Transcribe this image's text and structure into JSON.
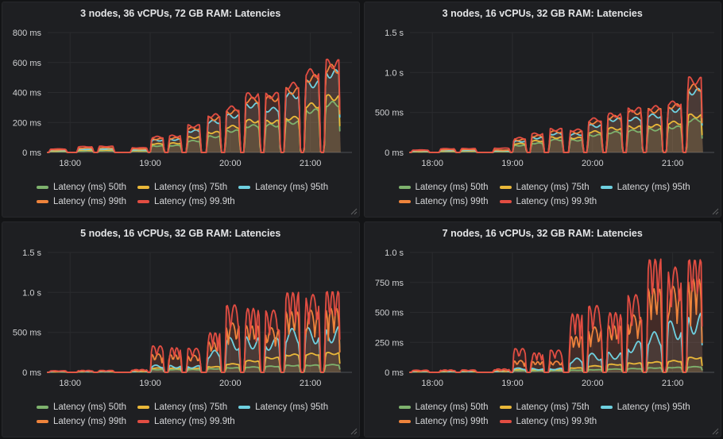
{
  "page": {
    "background": "#131416",
    "panel_background": "#1e1f22",
    "grid_color": "#2a2b2e",
    "axis_color": "#4f5256",
    "tick_text_color": "#d0d1d3",
    "title_color": "#e3e4e6"
  },
  "chart_data": [
    {
      "type": "area",
      "title": "3 nodes, 36 vCPUs, 72 GB RAM: Latencies",
      "style": "plateau",
      "x_range": [
        17.72,
        21.52
      ],
      "data_end": 21.38,
      "x_ticks": [
        {
          "hour": 18,
          "label": "18:00"
        },
        {
          "hour": 19,
          "label": "19:00"
        },
        {
          "hour": 20,
          "label": "20:00"
        },
        {
          "hour": 21,
          "label": "21:00"
        }
      ],
      "y_max": 800,
      "y_ticks": [
        {
          "value": 0,
          "label": "0 ms"
        },
        {
          "value": 200,
          "label": "200 ms"
        },
        {
          "value": 400,
          "label": "400 ms"
        },
        {
          "value": 600,
          "label": "600 ms"
        },
        {
          "value": 800,
          "label": "800 ms"
        }
      ],
      "y_unit": "latency",
      "burst_windows": [
        [
          17.73,
          17.97
        ],
        [
          18.08,
          18.3
        ],
        [
          18.34,
          18.56
        ],
        [
          18.75,
          18.98
        ],
        [
          19.0,
          19.18
        ],
        [
          19.22,
          19.4
        ],
        [
          19.45,
          19.64
        ],
        [
          19.7,
          19.89
        ],
        [
          19.93,
          20.13
        ],
        [
          20.17,
          20.38
        ],
        [
          20.42,
          20.63
        ],
        [
          20.67,
          20.88
        ],
        [
          20.92,
          21.13
        ],
        [
          21.17,
          21.38
        ]
      ],
      "series": [
        {
          "name": "Latency (ms) 50th",
          "color": "#7eb26d",
          "peaks": [
            6,
            10,
            11,
            8,
            45,
            48,
            80,
            110,
            150,
            185,
            190,
            210,
            290,
            340
          ]
        },
        {
          "name": "Latency (ms) 75th",
          "color": "#eab839",
          "peaks": [
            10,
            16,
            17,
            13,
            60,
            64,
            105,
            140,
            180,
            220,
            215,
            240,
            330,
            385
          ]
        },
        {
          "name": "Latency (ms) 95th",
          "color": "#6ed0e0",
          "peaks": [
            14,
            22,
            24,
            18,
            85,
            90,
            150,
            215,
            255,
            330,
            300,
            400,
            480,
            552
          ]
        },
        {
          "name": "Latency (ms) 99th",
          "color": "#ef843c",
          "peaks": [
            18,
            30,
            32,
            24,
            95,
            100,
            168,
            238,
            285,
            368,
            378,
            432,
            520,
            588
          ]
        },
        {
          "name": "Latency (ms) 99.9th",
          "color": "#e24d42",
          "peaks": [
            24,
            40,
            42,
            32,
            108,
            115,
            185,
            258,
            310,
            398,
            400,
            468,
            558,
            622
          ]
        }
      ]
    },
    {
      "type": "area",
      "title": "3 nodes, 16 vCPUs, 32 GB RAM: Latencies",
      "style": "plateau",
      "x_range": [
        17.72,
        21.52
      ],
      "data_end": 21.38,
      "x_ticks": [
        {
          "hour": 18,
          "label": "18:00"
        },
        {
          "hour": 19,
          "label": "19:00"
        },
        {
          "hour": 20,
          "label": "20:00"
        },
        {
          "hour": 21,
          "label": "21:00"
        }
      ],
      "y_max": 1500,
      "y_ticks": [
        {
          "value": 0,
          "label": "0 ms"
        },
        {
          "value": 500,
          "label": "500 ms"
        },
        {
          "value": 1000,
          "label": "1.0 s"
        },
        {
          "value": 1500,
          "label": "1.5 s"
        }
      ],
      "y_unit": "latency",
      "burst_windows": [
        [
          17.73,
          17.97
        ],
        [
          18.08,
          18.3
        ],
        [
          18.34,
          18.56
        ],
        [
          18.75,
          18.98
        ],
        [
          19.0,
          19.18
        ],
        [
          19.22,
          19.4
        ],
        [
          19.45,
          19.64
        ],
        [
          19.7,
          19.89
        ],
        [
          19.93,
          20.13
        ],
        [
          20.17,
          20.38
        ],
        [
          20.42,
          20.63
        ],
        [
          20.67,
          20.88
        ],
        [
          20.92,
          21.13
        ],
        [
          21.17,
          21.38
        ]
      ],
      "series": [
        {
          "name": "Latency (ms) 50th",
          "color": "#7eb26d",
          "peaks": [
            8,
            12,
            13,
            10,
            90,
            120,
            165,
            160,
            225,
            262,
            282,
            300,
            330,
            425
          ]
        },
        {
          "name": "Latency (ms) 75th",
          "color": "#eab839",
          "peaks": [
            12,
            18,
            20,
            16,
            115,
            150,
            195,
            190,
            270,
            312,
            332,
            350,
            390,
            480
          ]
        },
        {
          "name": "Latency (ms) 95th",
          "color": "#6ed0e0",
          "peaks": [
            18,
            26,
            28,
            22,
            145,
            190,
            245,
            238,
            350,
            432,
            440,
            480,
            558,
            800
          ]
        },
        {
          "name": "Latency (ms) 99th",
          "color": "#ef843c",
          "peaks": [
            24,
            36,
            38,
            30,
            165,
            215,
            272,
            265,
            395,
            462,
            528,
            548,
            608,
            855
          ]
        },
        {
          "name": "Latency (ms) 99.9th",
          "color": "#e24d42",
          "peaks": [
            32,
            48,
            50,
            55,
            188,
            242,
            300,
            292,
            432,
            492,
            562,
            585,
            642,
            945
          ]
        }
      ]
    },
    {
      "type": "area",
      "title": "5 nodes, 16 vCPUs, 32 GB RAM: Latencies",
      "style": "spiky",
      "x_range": [
        17.72,
        21.52
      ],
      "data_end": 21.38,
      "x_ticks": [
        {
          "hour": 18,
          "label": "18:00"
        },
        {
          "hour": 19,
          "label": "19:00"
        },
        {
          "hour": 20,
          "label": "20:00"
        },
        {
          "hour": 21,
          "label": "21:00"
        }
      ],
      "y_max": 1500,
      "y_ticks": [
        {
          "value": 0,
          "label": "0 ms"
        },
        {
          "value": 500,
          "label": "500 ms"
        },
        {
          "value": 1000,
          "label": "1.0 s"
        },
        {
          "value": 1500,
          "label": "1.5 s"
        }
      ],
      "y_unit": "latency",
      "burst_windows": [
        [
          17.73,
          17.97
        ],
        [
          18.08,
          18.3
        ],
        [
          18.34,
          18.56
        ],
        [
          18.75,
          18.98
        ],
        [
          19.0,
          19.18
        ],
        [
          19.22,
          19.4
        ],
        [
          19.45,
          19.64
        ],
        [
          19.7,
          19.89
        ],
        [
          19.93,
          20.13
        ],
        [
          20.17,
          20.38
        ],
        [
          20.42,
          20.63
        ],
        [
          20.67,
          20.88
        ],
        [
          20.92,
          21.13
        ],
        [
          21.17,
          21.38
        ]
      ],
      "series": [
        {
          "name": "Latency (ms) 50th",
          "color": "#7eb26d",
          "peaks": [
            5,
            6,
            6,
            7,
            35,
            35,
            35,
            45,
            58,
            68,
            78,
            88,
            92,
            98
          ]
        },
        {
          "name": "Latency (ms) 75th",
          "color": "#eab839",
          "peaks": [
            8,
            9,
            9,
            10,
            55,
            52,
            52,
            72,
            108,
            148,
            188,
            228,
            238,
            248
          ]
        },
        {
          "name": "Latency (ms) 95th",
          "color": "#6ed0e0",
          "peaks": [
            11,
            13,
            13,
            15,
            90,
            85,
            82,
            275,
            435,
            458,
            432,
            548,
            558,
            578
          ]
        },
        {
          "name": "Latency (ms) 99th",
          "color": "#ef843c",
          "peaks": [
            14,
            17,
            17,
            20,
            230,
            220,
            212,
            378,
            618,
            582,
            558,
            758,
            778,
            798
          ]
        },
        {
          "name": "Latency (ms) 99.9th",
          "color": "#e24d42",
          "peaks": [
            20,
            24,
            24,
            35,
            330,
            308,
            300,
            495,
            845,
            800,
            778,
            1000,
            975,
            1015
          ]
        }
      ]
    },
    {
      "type": "area",
      "title": "7 nodes, 16 vCPUs, 32 GB RAM: Latencies",
      "style": "spiky",
      "x_range": [
        17.72,
        21.52
      ],
      "data_end": 21.38,
      "x_ticks": [
        {
          "hour": 18,
          "label": "18:00"
        },
        {
          "hour": 19,
          "label": "19:00"
        },
        {
          "hour": 20,
          "label": "20:00"
        },
        {
          "hour": 21,
          "label": "21:00"
        }
      ],
      "y_max": 1000,
      "y_ticks": [
        {
          "value": 0,
          "label": "0 ms"
        },
        {
          "value": 250,
          "label": "250 ms"
        },
        {
          "value": 500,
          "label": "500 ms"
        },
        {
          "value": 750,
          "label": "750 ms"
        },
        {
          "value": 1000,
          "label": "1.0 s"
        }
      ],
      "y_unit": "latency",
      "burst_windows": [
        [
          17.73,
          17.97
        ],
        [
          18.08,
          18.3
        ],
        [
          18.34,
          18.56
        ],
        [
          18.75,
          18.98
        ],
        [
          19.0,
          19.18
        ],
        [
          19.22,
          19.4
        ],
        [
          19.45,
          19.64
        ],
        [
          19.7,
          19.89
        ],
        [
          19.93,
          20.13
        ],
        [
          20.17,
          20.38
        ],
        [
          20.42,
          20.63
        ],
        [
          20.67,
          20.88
        ],
        [
          20.92,
          21.13
        ],
        [
          21.17,
          21.38
        ]
      ],
      "series": [
        {
          "name": "Latency (ms) 50th",
          "color": "#7eb26d",
          "peaks": [
            4,
            5,
            5,
            6,
            14,
            13,
            14,
            18,
            22,
            28,
            32,
            38,
            42,
            48
          ]
        },
        {
          "name": "Latency (ms) 75th",
          "color": "#eab839",
          "peaks": [
            6,
            7,
            7,
            8,
            24,
            22,
            23,
            38,
            55,
            68,
            78,
            88,
            98,
            125
          ]
        },
        {
          "name": "Latency (ms) 95th",
          "color": "#6ed0e0",
          "peaks": [
            9,
            10,
            10,
            12,
            36,
            32,
            34,
            118,
            158,
            172,
            258,
            338,
            428,
            498
          ]
        },
        {
          "name": "Latency (ms) 99th",
          "color": "#ef843c",
          "peaks": [
            12,
            14,
            14,
            16,
            98,
            88,
            92,
            298,
            378,
            388,
            478,
            698,
            718,
            778
          ]
        },
        {
          "name": "Latency (ms) 99.9th",
          "color": "#e24d42",
          "peaks": [
            18,
            20,
            20,
            28,
            198,
            162,
            185,
            488,
            558,
            498,
            648,
            945,
            878,
            942
          ]
        }
      ]
    }
  ]
}
